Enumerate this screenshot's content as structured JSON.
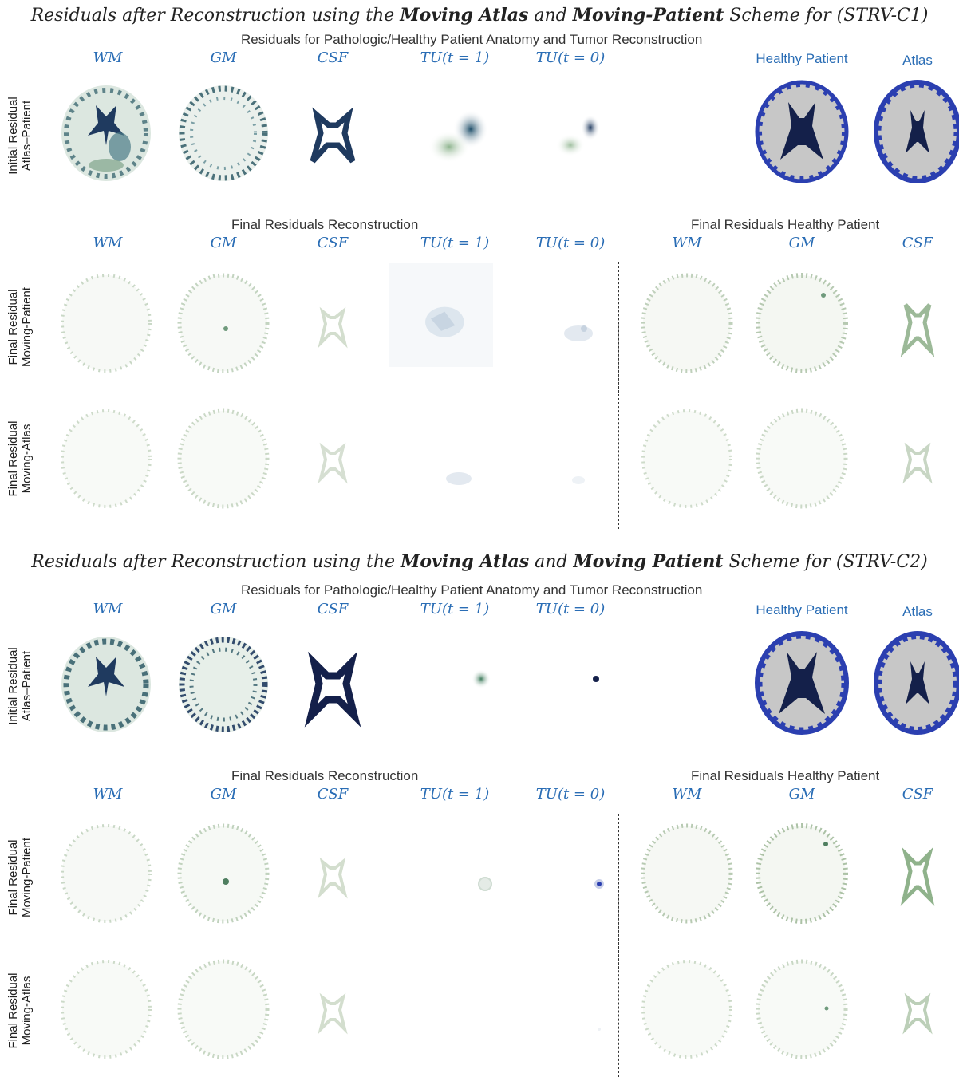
{
  "panels": [
    {
      "title_prefix": "Residuals after Reconstruction using the ",
      "title_bold1": "Moving Atlas",
      "title_mid": " and ",
      "title_bold2": "Moving-Patient",
      "title_suffix": " Scheme for (STRV-C1)",
      "section1_title": "Residuals for Pathologic/Healthy Patient Anatomy and Tumor Reconstruction",
      "section2_left_title": "Final Residuals Reconstruction",
      "section2_right_title": "Final Residuals Healthy Patient",
      "cols": [
        "WM",
        "GM",
        "CSF",
        "TU(t = 1)",
        "TU(t = 0)"
      ],
      "right_cols": [
        "Healthy Patient",
        "Atlas"
      ],
      "cols_right2": [
        "WM",
        "GM",
        "CSF"
      ],
      "rows": [
        {
          "line1": "Initial Residual",
          "line2": "Atlas–Patient"
        },
        {
          "line1": "Final Residual",
          "line2": "Moving-Patient"
        },
        {
          "line1": "Final Residual",
          "line2": "Moving-Atlas"
        }
      ]
    },
    {
      "title_prefix": "Residuals after Reconstruction using the ",
      "title_bold1": "Moving Atlas",
      "title_mid": " and ",
      "title_bold2": "Moving Patient",
      "title_suffix": " Scheme for (STRV-C2)",
      "section1_title": "Residuals for Pathologic/Healthy Patient Anatomy and Tumor Reconstruction",
      "section2_left_title": "Final Residuals Reconstruction",
      "section2_right_title": "Final Residuals Healthy Patient",
      "cols": [
        "WM",
        "GM",
        "CSF",
        "TU(t = 1)",
        "TU(t = 0)"
      ],
      "right_cols": [
        "Healthy Patient",
        "Atlas"
      ],
      "cols_right2": [
        "WM",
        "GM",
        "CSF"
      ],
      "rows": [
        {
          "line1": "Initial Residual",
          "line2": "Atlas–Patient"
        },
        {
          "line1": "Final Residual",
          "line2": "Moving-Patient"
        },
        {
          "line1": "Final Residual",
          "line2": "Moving-Atlas"
        }
      ]
    }
  ],
  "colors": {
    "label_blue": "#2a6db5",
    "residual_dark": "#1f3a5f",
    "residual_green": "#6f9a7c",
    "atlas_gray": "#c7c7c7",
    "atlas_blue": "#2b3fb0"
  }
}
